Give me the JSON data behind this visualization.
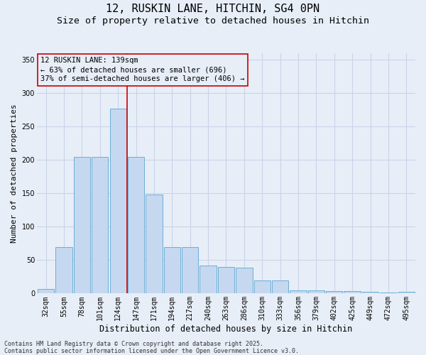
{
  "title_line1": "12, RUSKIN LANE, HITCHIN, SG4 0PN",
  "title_line2": "Size of property relative to detached houses in Hitchin",
  "xlabel": "Distribution of detached houses by size in Hitchin",
  "ylabel": "Number of detached properties",
  "categories": [
    "32sqm",
    "55sqm",
    "78sqm",
    "101sqm",
    "124sqm",
    "147sqm",
    "171sqm",
    "194sqm",
    "217sqm",
    "240sqm",
    "263sqm",
    "286sqm",
    "310sqm",
    "333sqm",
    "356sqm",
    "379sqm",
    "402sqm",
    "425sqm",
    "449sqm",
    "472sqm",
    "495sqm"
  ],
  "values": [
    7,
    70,
    205,
    205,
    277,
    205,
    148,
    70,
    70,
    42,
    40,
    39,
    20,
    20,
    5,
    5,
    4,
    4,
    3,
    1,
    3
  ],
  "bar_color": "#c5d8f0",
  "bar_edge_color": "#6baed6",
  "vline_color": "#cc0000",
  "vline_x_index": 4.5,
  "annotation_text": "12 RUSKIN LANE: 139sqm\n← 63% of detached houses are smaller (696)\n37% of semi-detached houses are larger (406) →",
  "annotation_box_edgecolor": "#cc0000",
  "background_color": "#e8eef7",
  "grid_color": "#c8d4e8",
  "ylim": [
    0,
    360
  ],
  "yticks": [
    0,
    50,
    100,
    150,
    200,
    250,
    300,
    350
  ],
  "footnote": "Contains HM Land Registry data © Crown copyright and database right 2025.\nContains public sector information licensed under the Open Government Licence v3.0.",
  "title_fontsize": 11,
  "subtitle_fontsize": 9.5,
  "xlabel_fontsize": 8.5,
  "ylabel_fontsize": 8,
  "tick_fontsize": 7,
  "annotation_fontsize": 7.5,
  "footnote_fontsize": 6
}
